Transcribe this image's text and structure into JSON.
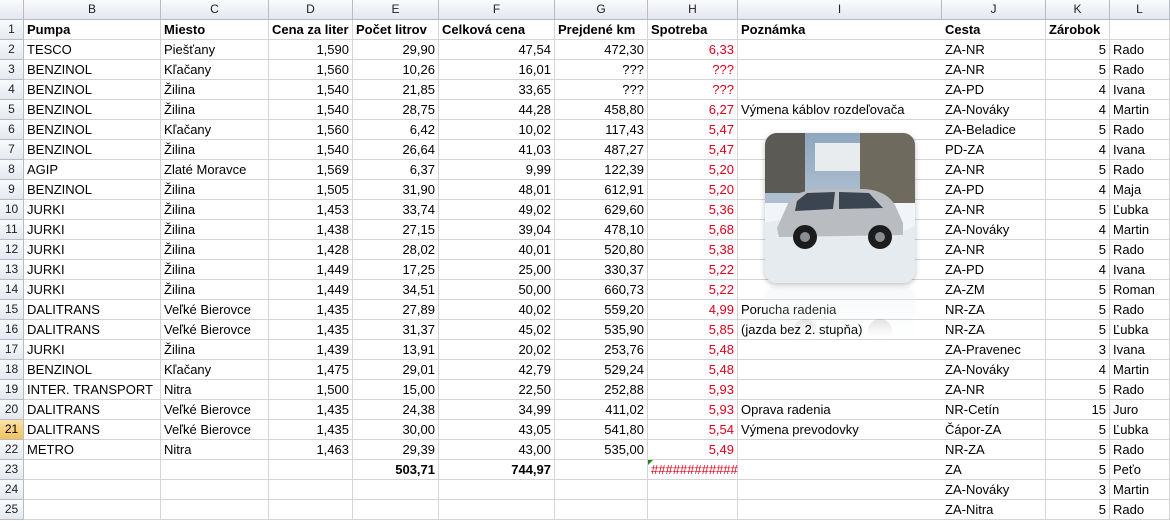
{
  "columns": {
    "row_header": "",
    "B": "B",
    "C": "C",
    "D": "D",
    "E": "E",
    "F": "F",
    "G": "G",
    "H": "H",
    "I": "I",
    "J": "J",
    "K": "K",
    "L": "L"
  },
  "selected_row": "21",
  "rows": [
    {
      "n": "1",
      "b": "Pumpa",
      "c": "Miesto",
      "d": "Cena za liter",
      "e": "Počet litrov",
      "f": "Celková cena",
      "g": "Prejdené km",
      "h": "Spotreba",
      "i": "Poznámka",
      "j": "Cesta",
      "k": "Zárobok",
      "l": "",
      "header": true
    },
    {
      "n": "2",
      "b": "TESCO",
      "c": "Piešťany",
      "d": "1,590",
      "e": "29,90",
      "f": "47,54",
      "g": "472,30",
      "h": "6,33",
      "i": "",
      "j": "ZA-NR",
      "k": "5",
      "l": "Rado"
    },
    {
      "n": "3",
      "b": "BENZINOL",
      "c": "Kľačany",
      "d": "1,560",
      "e": "10,26",
      "f": "16,01",
      "g": "???",
      "h": "???",
      "i": "",
      "j": "ZA-NR",
      "k": "5",
      "l": "Rado"
    },
    {
      "n": "4",
      "b": "BENZINOL",
      "c": "Žilina",
      "d": "1,540",
      "e": "21,85",
      "f": "33,65",
      "g": "???",
      "h": "???",
      "i": "",
      "j": "ZA-PD",
      "k": "4",
      "l": "Ivana"
    },
    {
      "n": "5",
      "b": "BENZINOL",
      "c": "Žilina",
      "d": "1,540",
      "e": "28,75",
      "f": "44,28",
      "g": "458,80",
      "h": "6,27",
      "i": "Výmena káblov rozdeľovača",
      "j": "ZA-Nováky",
      "k": "4",
      "l": "Martin"
    },
    {
      "n": "6",
      "b": "BENZINOL",
      "c": "Kľačany",
      "d": "1,560",
      "e": "6,42",
      "f": "10,02",
      "g": "117,43",
      "h": "5,47",
      "i": "",
      "j": "ZA-Beladice",
      "k": "5",
      "l": "Rado"
    },
    {
      "n": "7",
      "b": "BENZINOL",
      "c": "Žilina",
      "d": "1,540",
      "e": "26,64",
      "f": "41,03",
      "g": "487,27",
      "h": "5,47",
      "i": "",
      "j": "PD-ZA",
      "k": "4",
      "l": "Ivana"
    },
    {
      "n": "8",
      "b": "AGIP",
      "c": "Zlaté Moravce",
      "d": "1,569",
      "e": "6,37",
      "f": "9,99",
      "g": "122,39",
      "h": "5,20",
      "i": "",
      "j": "ZA-NR",
      "k": "5",
      "l": "Rado"
    },
    {
      "n": "9",
      "b": "BENZINOL",
      "c": "Žilina",
      "d": "1,505",
      "e": "31,90",
      "f": "48,01",
      "g": "612,91",
      "h": "5,20",
      "i": "",
      "j": "ZA-PD",
      "k": "4",
      "l": "Maja"
    },
    {
      "n": "10",
      "b": "JURKI",
      "c": "Žilina",
      "d": "1,453",
      "e": "33,74",
      "f": "49,02",
      "g": "629,60",
      "h": "5,36",
      "i": "",
      "j": "ZA-NR",
      "k": "5",
      "l": "Ľubka"
    },
    {
      "n": "11",
      "b": "JURKI",
      "c": "Žilina",
      "d": "1,438",
      "e": "27,15",
      "f": "39,04",
      "g": "478,10",
      "h": "5,68",
      "i": "",
      "j": "ZA-Nováky",
      "k": "4",
      "l": "Martin"
    },
    {
      "n": "12",
      "b": "JURKI",
      "c": "Žilina",
      "d": "1,428",
      "e": "28,02",
      "f": "40,01",
      "g": "520,80",
      "h": "5,38",
      "i": "",
      "j": "ZA-NR",
      "k": "5",
      "l": "Rado"
    },
    {
      "n": "13",
      "b": "JURKI",
      "c": "Žilina",
      "d": "1,449",
      "e": "17,25",
      "f": "25,00",
      "g": "330,37",
      "h": "5,22",
      "i": "",
      "j": "ZA-PD",
      "k": "4",
      "l": "Ivana"
    },
    {
      "n": "14",
      "b": "JURKI",
      "c": "Žilina",
      "d": "1,449",
      "e": "34,51",
      "f": "50,00",
      "g": "660,73",
      "h": "5,22",
      "i": "",
      "j": "ZA-ZM",
      "k": "5",
      "l": "Roman"
    },
    {
      "n": "15",
      "b": "DALITRANS",
      "c": "Veľké Bierovce",
      "d": "1,435",
      "e": "27,89",
      "f": "40,02",
      "g": "559,20",
      "h": "4,99",
      "i": "Porucha radenia",
      "j": "NR-ZA",
      "k": "5",
      "l": "Rado"
    },
    {
      "n": "16",
      "b": "DALITRANS",
      "c": "Veľké Bierovce",
      "d": "1,435",
      "e": "31,37",
      "f": "45,02",
      "g": "535,90",
      "h": "5,85",
      "i": "(jazda bez 2. stupňa)",
      "j": "NR-ZA",
      "k": "5",
      "l": "Ľubka"
    },
    {
      "n": "17",
      "b": "JURKI",
      "c": "Žilina",
      "d": "1,439",
      "e": "13,91",
      "f": "20,02",
      "g": "253,76",
      "h": "5,48",
      "i": "",
      "j": "ZA-Pravenec",
      "k": "3",
      "l": "Ivana"
    },
    {
      "n": "18",
      "b": "BENZINOL",
      "c": "Kľačany",
      "d": "1,475",
      "e": "29,01",
      "f": "42,79",
      "g": "529,24",
      "h": "5,48",
      "i": "",
      "j": "ZA-Nováky",
      "k": "4",
      "l": "Martin"
    },
    {
      "n": "19",
      "b": "INTER. TRANSPORT",
      "c": "Nitra",
      "d": "1,500",
      "e": "15,00",
      "f": "22,50",
      "g": "252,88",
      "h": "5,93",
      "i": "",
      "j": "ZA-NR",
      "k": "5",
      "l": "Rado"
    },
    {
      "n": "20",
      "b": "DALITRANS",
      "c": "Veľké Bierovce",
      "d": "1,435",
      "e": "24,38",
      "f": "34,99",
      "g": "411,02",
      "h": "5,93",
      "i": "Oprava radenia",
      "j": "NR-Cetín",
      "k": "15",
      "l": "Juro"
    },
    {
      "n": "21",
      "b": "DALITRANS",
      "c": "Veľké Bierovce",
      "d": "1,435",
      "e": "30,00",
      "f": "43,05",
      "g": "541,80",
      "h": "5,54",
      "i": "Výmena prevodovky",
      "j": "Čápor-ZA",
      "k": "5",
      "l": "Ľubka"
    },
    {
      "n": "22",
      "b": "METRO",
      "c": "Nitra",
      "d": "1,463",
      "e": "29,39",
      "f": "43,00",
      "g": "535,00",
      "h": "5,49",
      "i": "",
      "j": "NR-ZA",
      "k": "5",
      "l": "Rado"
    },
    {
      "n": "23",
      "b": "",
      "c": "",
      "d": "",
      "e": "503,71",
      "f": "744,97",
      "g": "",
      "h": "############",
      "i": "",
      "j": "ZA",
      "k": "5",
      "l": "Peťo",
      "totals": true
    },
    {
      "n": "24",
      "b": "",
      "c": "",
      "d": "",
      "e": "",
      "f": "",
      "g": "",
      "h": "",
      "i": "",
      "j": "ZA-Nováky",
      "k": "3",
      "l": "Martin"
    },
    {
      "n": "25",
      "b": "",
      "c": "",
      "d": "",
      "e": "",
      "f": "",
      "g": "",
      "h": "",
      "i": "",
      "j": "ZA-Nitra",
      "k": "5",
      "l": "Rado"
    }
  ],
  "image": {
    "icon": "car-photo",
    "sky": "#c9d6e4",
    "snow": "#f2f5f8",
    "car": "#b9bcc0"
  },
  "colors": {
    "accent_red": "#e0001b",
    "selection": "#f1c15b",
    "grid": "#d4d4d4"
  }
}
